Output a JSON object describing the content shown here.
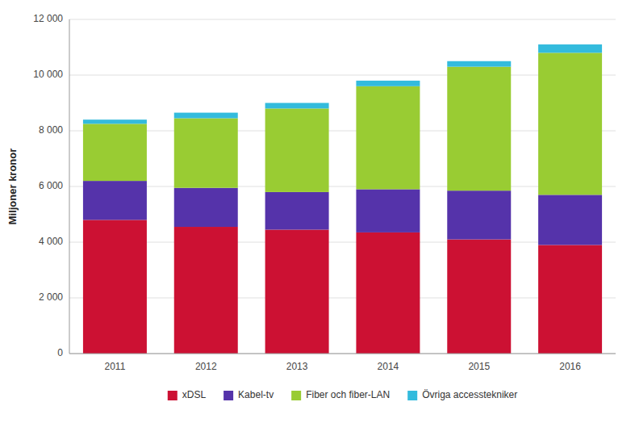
{
  "chart_data": {
    "type": "bar",
    "stacked": true,
    "categories": [
      "2011",
      "2012",
      "2013",
      "2014",
      "2015",
      "2016"
    ],
    "series": [
      {
        "name": "xDSL",
        "color": "#cc1133",
        "values": [
          4800,
          4550,
          4450,
          4350,
          4100,
          3900
        ]
      },
      {
        "name": "Kabel-tv",
        "color": "#5533aa",
        "values": [
          1400,
          1400,
          1350,
          1550,
          1750,
          1800
        ]
      },
      {
        "name": "Fiber och fiber-LAN",
        "color": "#99cc33",
        "values": [
          2050,
          2500,
          3000,
          3700,
          4450,
          5100
        ]
      },
      {
        "name": "Övriga accesstekniker",
        "color": "#33bbdd",
        "values": [
          150,
          200,
          200,
          200,
          200,
          300
        ]
      }
    ],
    "y_label": "Miljoner kronor",
    "ylim": [
      0,
      12000
    ],
    "yticks": [
      0,
      {
        "value": 2000,
        "label": "2 000"
      },
      {
        "value": 4000,
        "label": "4 000"
      },
      {
        "value": 6000,
        "label": "6 000"
      },
      {
        "value": 8000,
        "label": "8 000"
      },
      {
        "value": 10000,
        "label": "10 000"
      },
      {
        "value": 12000,
        "label": "12 000"
      }
    ],
    "grid": true,
    "legend": "bottom"
  }
}
